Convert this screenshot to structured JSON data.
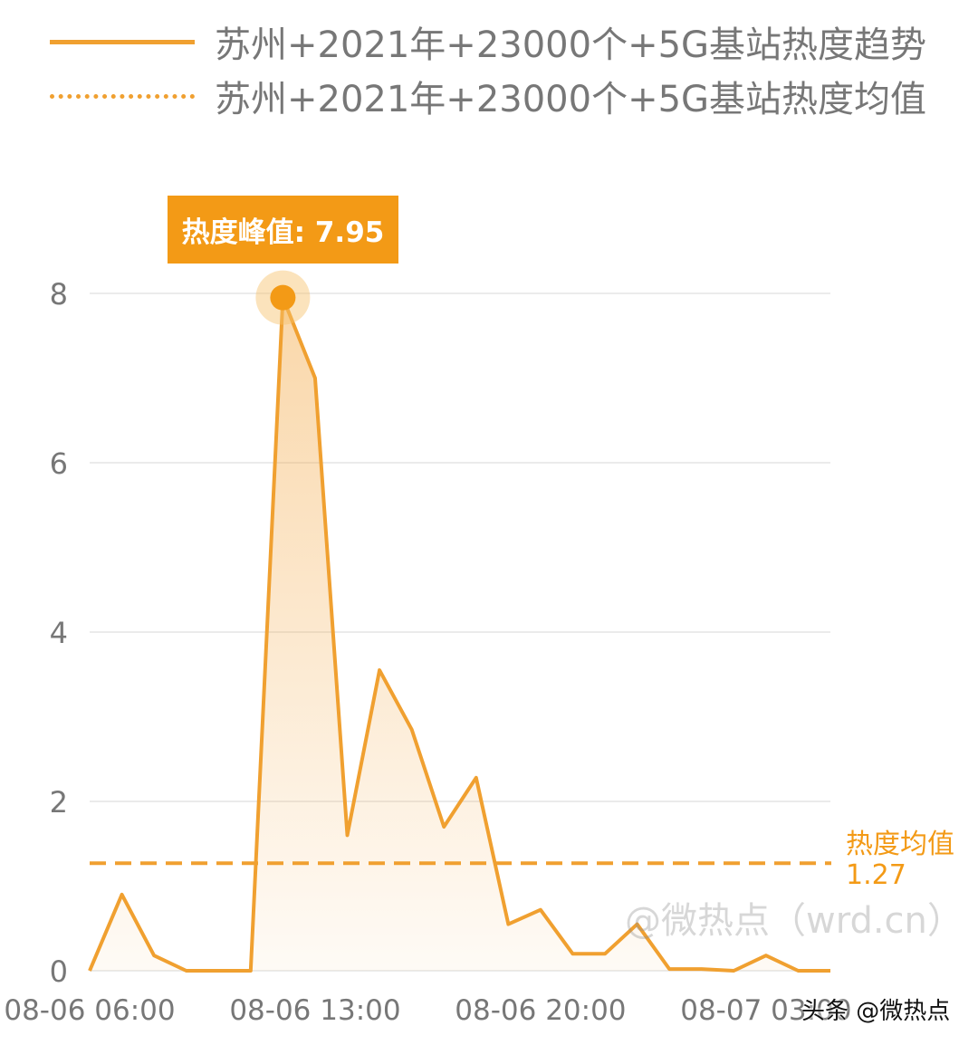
{
  "legend": {
    "series_label": "苏州+2021年+23000个+5G基站热度趋势",
    "mean_label": "苏州+2021年+23000个+5G基站热度均值"
  },
  "peak_badge": "热度峰值: 7.95",
  "mean_annotation": {
    "title": "热度均值",
    "value": "1.27"
  },
  "watermark": "@微热点（wrd.cn）",
  "credit": "头条 @微热点",
  "colors": {
    "series": "#F0A030",
    "badge": "#F39A16",
    "grid": "#EBEBEB",
    "axis_text": "#777777"
  },
  "chart_data": {
    "type": "area",
    "x": [
      "08-06 06:00",
      "08-06 07:00",
      "08-06 08:00",
      "08-06 09:00",
      "08-06 10:00",
      "08-06 11:00",
      "08-06 12:00",
      "08-06 13:00",
      "08-06 14:00",
      "08-06 15:00",
      "08-06 16:00",
      "08-06 17:00",
      "08-06 18:00",
      "08-06 19:00",
      "08-06 20:00",
      "08-06 21:00",
      "08-06 22:00",
      "08-06 23:00",
      "08-07 00:00",
      "08-07 01:00",
      "08-07 02:00",
      "08-07 03:00",
      "08-07 04:00",
      "08-07 05:00"
    ],
    "series": [
      {
        "name": "苏州+2021年+23000个+5G基站热度趋势",
        "values": [
          0.0,
          0.9,
          0.18,
          0.0,
          0.0,
          0.0,
          7.95,
          7.0,
          1.6,
          3.55,
          2.85,
          1.7,
          2.28,
          0.55,
          0.72,
          0.2,
          0.2,
          0.55,
          0.02,
          0.02,
          0.0,
          0.18,
          0.0,
          0.0
        ]
      }
    ],
    "mean": 1.27,
    "peak": 7.95,
    "ylim": [
      0,
      8
    ],
    "yticks": [
      "0",
      "2",
      "4",
      "6",
      "8"
    ],
    "xtick_labels": [
      "08-06 06:00",
      "08-06 13:00",
      "08-06 20:00",
      "08-07 03:00"
    ],
    "grid": "horizontal",
    "legend_position": "top"
  }
}
